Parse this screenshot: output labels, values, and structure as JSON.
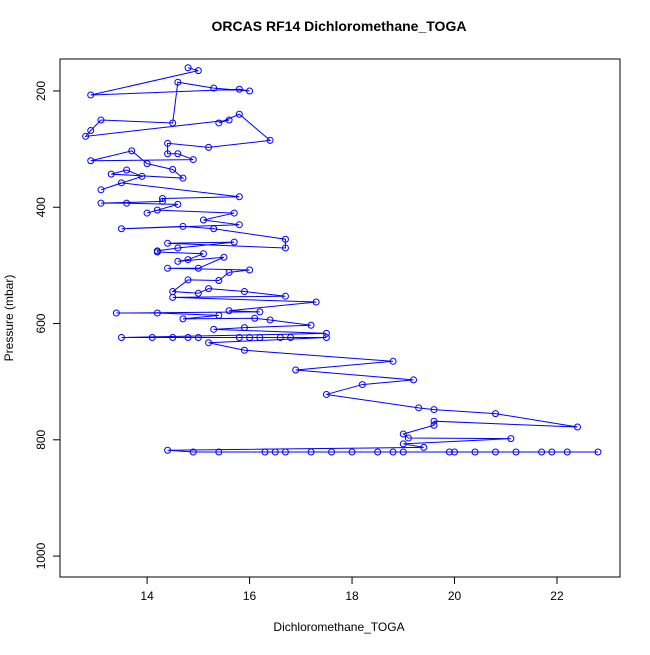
{
  "chart_data": {
    "type": "line",
    "title": "ORCAS RF14 Dichloromethane_TOGA",
    "x_label": "Dichloromethane_TOGA",
    "y_label": "Pressure (mbar)",
    "color": "#0000ff",
    "markers": true,
    "xlim": [
      12.3,
      23.23
    ],
    "ylim": [
      1036,
      145
    ],
    "xticks": [
      14,
      16,
      18,
      20,
      22
    ],
    "yticks": [
      200,
      400,
      600,
      800,
      1000
    ],
    "series": [
      {
        "name": "Dichloromethane_TOGA",
        "x": [
          14.8,
          15.0,
          12.9,
          15.8,
          16.0,
          15.3,
          14.6,
          14.5,
          13.1,
          12.9,
          12.8,
          15.6,
          15.4,
          15.8,
          16.4,
          15.2,
          14.4,
          14.4,
          14.6,
          14.9,
          12.9,
          13.7,
          14.0,
          14.5,
          14.7,
          13.3,
          13.6,
          13.9,
          13.1,
          13.5,
          15.8,
          14.3,
          14.3,
          13.1,
          13.6,
          14.6,
          14.0,
          14.2,
          15.7,
          15.1,
          15.8,
          13.5,
          14.7,
          15.3,
          16.7,
          16.7,
          14.4,
          15.7,
          14.6,
          14.2,
          14.2,
          15.1,
          14.8,
          14.6,
          15.5,
          15.0,
          14.4,
          16.0,
          15.6,
          15.4,
          14.8,
          14.5,
          15.0,
          15.2,
          15.9,
          16.7,
          14.5,
          17.3,
          15.6,
          16.2,
          13.4,
          14.2,
          15.4,
          14.7,
          16.1,
          16.4,
          17.2,
          15.9,
          15.3,
          17.5,
          13.5,
          14.1,
          14.5,
          14.8,
          15.0,
          15.8,
          16.0,
          16.2,
          16.6,
          16.8,
          17.5,
          15.2,
          15.9,
          18.8,
          16.9,
          19.2,
          18.2,
          17.5,
          19.3,
          19.6,
          20.8,
          22.4,
          19.6,
          19.6,
          19.0,
          19.1,
          21.1,
          19.0,
          19.4,
          14.4,
          14.9,
          15.4,
          16.3,
          16.5,
          16.7,
          17.2,
          17.6,
          18.0,
          18.5,
          18.8,
          19.0,
          19.9,
          20.0,
          20.4,
          20.8,
          21.2,
          21.7,
          21.9,
          22.2,
          22.8
        ],
        "values": [
          160,
          165,
          207,
          197,
          200,
          195,
          185,
          255,
          250,
          268,
          278,
          250,
          255,
          240,
          285,
          297,
          290,
          308,
          308,
          318,
          320,
          303,
          325,
          335,
          350,
          343,
          336,
          347,
          370,
          358,
          382,
          385,
          390,
          393,
          393,
          395,
          410,
          405,
          410,
          422,
          430,
          437,
          433,
          437,
          455,
          470,
          462,
          460,
          470,
          475,
          477,
          480,
          490,
          493,
          486,
          505,
          505,
          508,
          512,
          526,
          525,
          545,
          548,
          540,
          545,
          553,
          555,
          563,
          578,
          580,
          582,
          582,
          586,
          592,
          591,
          594,
          603,
          607,
          610,
          617,
          624,
          624,
          624,
          624,
          624,
          624,
          624,
          624,
          624,
          624,
          624,
          633,
          646,
          665,
          680,
          697,
          705,
          722,
          745,
          748,
          755,
          778,
          768,
          775,
          790,
          797,
          798,
          807,
          813,
          818,
          821,
          821,
          821,
          821,
          821,
          821,
          821,
          821,
          821,
          821,
          821,
          821,
          821,
          821,
          821,
          821,
          821,
          821,
          821,
          821
        ]
      }
    ]
  }
}
